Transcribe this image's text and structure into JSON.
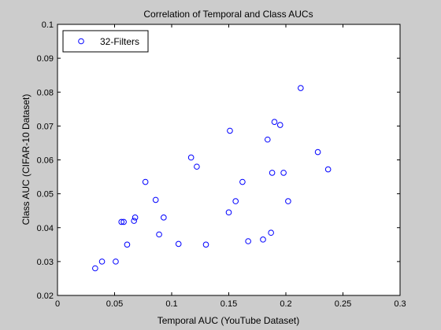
{
  "chart_data": {
    "type": "scatter",
    "title": "Correlation of Temporal and Class AUCs",
    "xlabel": "Temporal AUC (YouTube Dataset)",
    "ylabel": "Class AUC (CIFAR-10 Dataset)",
    "xlim": [
      0,
      0.3
    ],
    "ylim": [
      0.02,
      0.1
    ],
    "xticks": [
      0,
      0.05,
      0.1,
      0.15,
      0.2,
      0.25,
      0.3
    ],
    "xtick_labels": [
      "0",
      "0.05",
      "0.1",
      "0.15",
      "0.2",
      "0.25",
      "0.3"
    ],
    "yticks": [
      0.02,
      0.03,
      0.04,
      0.05,
      0.06,
      0.07,
      0.08,
      0.09,
      0.1
    ],
    "ytick_labels": [
      "0.02",
      "0.03",
      "0.04",
      "0.05",
      "0.06",
      "0.07",
      "0.08",
      "0.09",
      "0.1"
    ],
    "grid": false,
    "legend_position": "top-left",
    "marker": "circle-open",
    "series": [
      {
        "name": "32-Filters",
        "color": "#0000ff",
        "points": [
          [
            0.033,
            0.028
          ],
          [
            0.039,
            0.03
          ],
          [
            0.051,
            0.03
          ],
          [
            0.056,
            0.0417
          ],
          [
            0.058,
            0.0417
          ],
          [
            0.061,
            0.035
          ],
          [
            0.067,
            0.042
          ],
          [
            0.068,
            0.043
          ],
          [
            0.077,
            0.0535
          ],
          [
            0.086,
            0.0482
          ],
          [
            0.089,
            0.038
          ],
          [
            0.093,
            0.043
          ],
          [
            0.106,
            0.0352
          ],
          [
            0.117,
            0.0607
          ],
          [
            0.122,
            0.058
          ],
          [
            0.13,
            0.035
          ],
          [
            0.15,
            0.0445
          ],
          [
            0.151,
            0.0686
          ],
          [
            0.156,
            0.0478
          ],
          [
            0.162,
            0.0535
          ],
          [
            0.167,
            0.036
          ],
          [
            0.18,
            0.0365
          ],
          [
            0.184,
            0.066
          ],
          [
            0.187,
            0.0385
          ],
          [
            0.188,
            0.0562
          ],
          [
            0.19,
            0.0712
          ],
          [
            0.195,
            0.0703
          ],
          [
            0.198,
            0.0562
          ],
          [
            0.202,
            0.0478
          ],
          [
            0.213,
            0.0812
          ],
          [
            0.228,
            0.0623
          ],
          [
            0.237,
            0.0572
          ]
        ]
      }
    ]
  }
}
